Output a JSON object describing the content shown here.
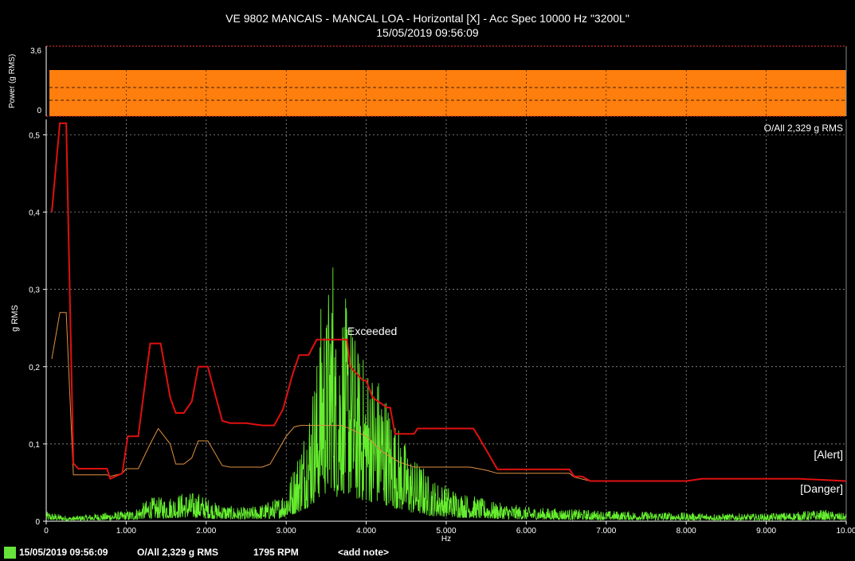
{
  "header": {
    "title_line1": "VE 9802 MANCAIS - MANCAL LOA - Horizontal [X] - Acc Spec 10000 Hz \"3200L\"",
    "title_line2": "15/05/2019 09:56:09"
  },
  "power_panel": {
    "ylabel": "Power (g RMS)",
    "ticks": [
      "3,6",
      "0"
    ],
    "color": "#ff7f0e"
  },
  "overall_label": "O/All 2,329 g RMS",
  "exceeded_label": "Exceeded",
  "alert_label": "[Alert]",
  "danger_label": "[Danger]",
  "status": {
    "date": "15/05/2019 09:56:09",
    "overall": "O/All 2,329 g RMS",
    "rpm": "1795 RPM",
    "note": "<add note>"
  },
  "colors": {
    "spectrum": "#66ee2f",
    "alarm_red": "#e01010",
    "alarm_orange": "#e09040",
    "grid": "#aaaaaa"
  },
  "chart_data": {
    "type": "line",
    "xlabel": "Hz",
    "ylabel": "g RMS",
    "xlim": [
      0,
      10000
    ],
    "ylim": [
      0,
      0.52
    ],
    "x_ticks": [
      0,
      1000,
      2000,
      3000,
      4000,
      5000,
      6000,
      7000,
      8000,
      9000,
      10000
    ],
    "x_tick_labels": [
      "0",
      "1.000",
      "2.000",
      "3.000",
      "4.000",
      "5.000",
      "6.000",
      "7.000",
      "8.000",
      "9.000",
      "10.00"
    ],
    "y_ticks": [
      0,
      0.1,
      0.2,
      0.3,
      0.4,
      0.5
    ],
    "y_tick_labels": [
      "0",
      "0,1",
      "0,2",
      "0,3",
      "0,4",
      "0,5"
    ],
    "grid": true,
    "series": [
      {
        "name": "[Alert]",
        "color": "#e01010",
        "x": [
          70,
          170,
          250,
          340,
          400,
          600,
          760,
          800,
          950,
          1020,
          1150,
          1300,
          1430,
          1550,
          1620,
          1720,
          1820,
          1900,
          2020,
          2200,
          2300,
          2500,
          2700,
          2850,
          2960,
          3080,
          3160,
          3280,
          3380,
          3460,
          3760,
          3800,
          3960,
          4000,
          4080,
          4260,
          4300,
          4360,
          4600,
          4640,
          5340,
          5400,
          5640,
          6540,
          6600,
          6700,
          6800,
          7900,
          8000,
          8200,
          9400,
          10000
        ],
        "y": [
          0.4,
          0.515,
          0.515,
          0.075,
          0.068,
          0.068,
          0.068,
          0.055,
          0.062,
          0.11,
          0.11,
          0.23,
          0.23,
          0.16,
          0.14,
          0.14,
          0.155,
          0.2,
          0.2,
          0.13,
          0.127,
          0.127,
          0.124,
          0.124,
          0.145,
          0.19,
          0.215,
          0.215,
          0.235,
          0.235,
          0.235,
          0.2,
          0.182,
          0.182,
          0.16,
          0.147,
          0.147,
          0.113,
          0.113,
          0.12,
          0.12,
          0.11,
          0.067,
          0.067,
          0.058,
          0.058,
          0.052,
          0.052,
          0.052,
          0.055,
          0.055,
          0.052
        ]
      },
      {
        "name": "[Danger]",
        "color": "#e09040",
        "x": [
          70,
          170,
          250,
          340,
          760,
          800,
          950,
          1000,
          1150,
          1300,
          1400,
          1550,
          1620,
          1720,
          1820,
          1900,
          2020,
          2200,
          2300,
          2700,
          2800,
          3000,
          3100,
          3180,
          3700,
          4000,
          4200,
          4400,
          4600,
          5300,
          5500,
          5640,
          6540,
          6600,
          6800,
          7900,
          8000,
          8200,
          9400,
          10000
        ],
        "y": [
          0.21,
          0.27,
          0.27,
          0.06,
          0.06,
          0.058,
          0.062,
          0.068,
          0.068,
          0.1,
          0.12,
          0.1,
          0.074,
          0.074,
          0.082,
          0.104,
          0.104,
          0.072,
          0.07,
          0.07,
          0.074,
          0.11,
          0.122,
          0.124,
          0.124,
          0.11,
          0.09,
          0.077,
          0.07,
          0.07,
          0.066,
          0.062,
          0.062,
          0.057,
          0.052,
          0.052,
          0.052,
          0.055,
          0.055,
          0.052
        ]
      },
      {
        "name": "",
        "color": "#66ee2f",
        "x": [
          0,
          300,
          600,
          900,
          1100,
          1300,
          1500,
          1700,
          1900,
          2100,
          2300,
          2500,
          2700,
          2900,
          3000,
          3100,
          3200,
          3300,
          3400,
          3450,
          3500,
          3580,
          3620,
          3700,
          3800,
          3900,
          4000,
          4100,
          4200,
          4300,
          4400,
          4500,
          4600,
          4700,
          4800,
          5000,
          5200,
          5400,
          5600,
          5800,
          6000,
          6500,
          7000,
          7500,
          8000,
          8500,
          9000,
          9400,
          9700,
          10000
        ],
        "y": [
          0.01,
          0.005,
          0.008,
          0.01,
          0.012,
          0.025,
          0.025,
          0.03,
          0.03,
          0.02,
          0.016,
          0.014,
          0.018,
          0.025,
          0.035,
          0.06,
          0.09,
          0.13,
          0.18,
          0.25,
          0.22,
          0.3,
          0.2,
          0.24,
          0.22,
          0.18,
          0.17,
          0.16,
          0.15,
          0.12,
          0.1,
          0.08,
          0.065,
          0.06,
          0.045,
          0.038,
          0.03,
          0.025,
          0.02,
          0.018,
          0.015,
          0.013,
          0.011,
          0.01,
          0.009,
          0.008,
          0.008,
          0.01,
          0.012,
          0.008
        ]
      }
    ]
  }
}
